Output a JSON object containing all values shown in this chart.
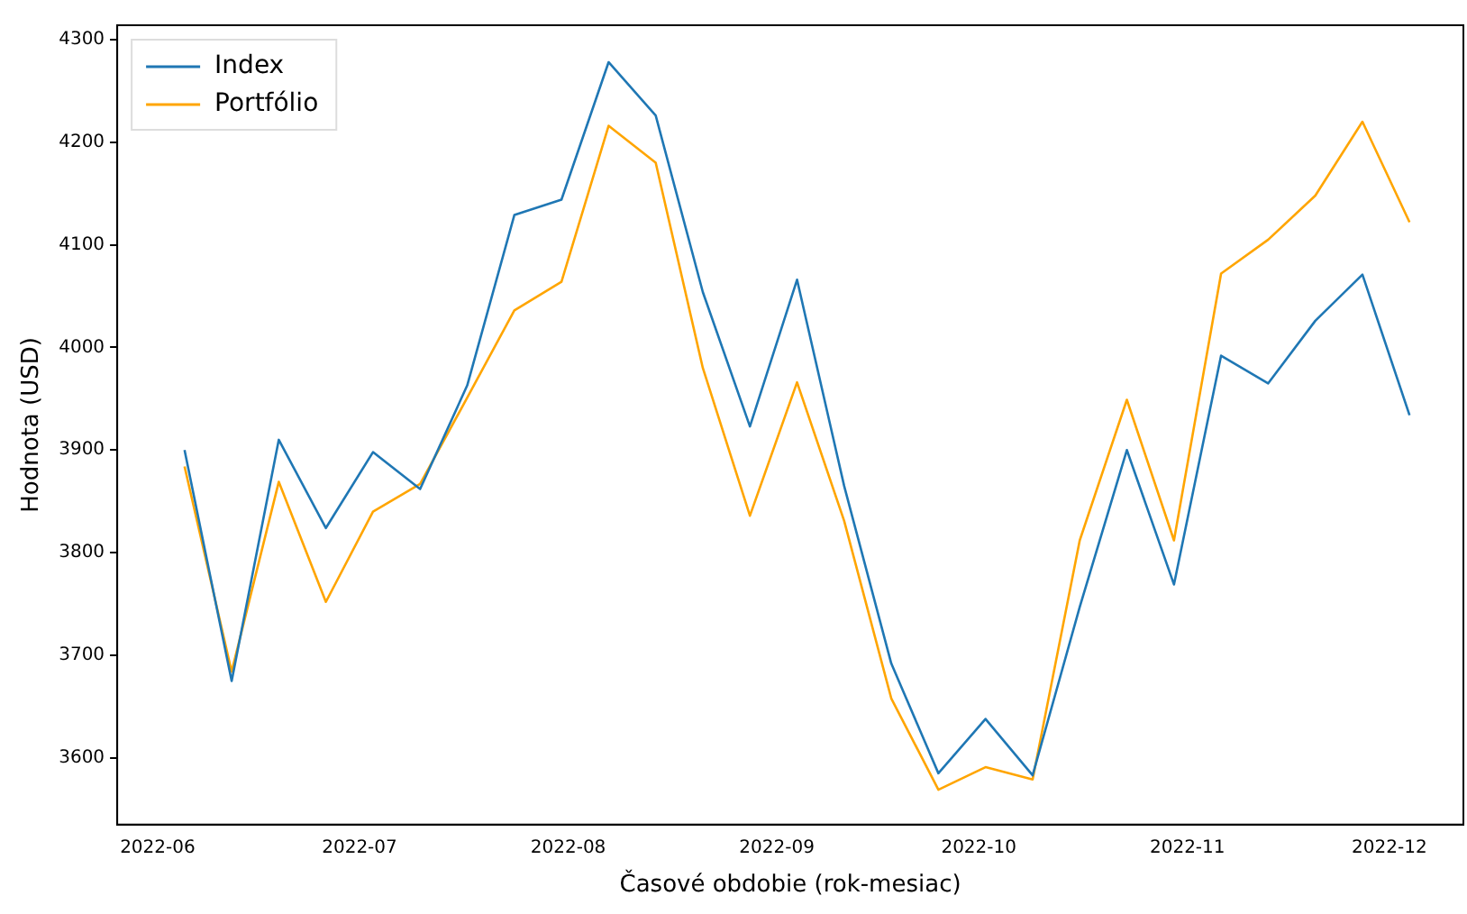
{
  "chart_data": {
    "type": "line",
    "xlabel": "Časové obdobie (rok-mesiac)",
    "ylabel": "Hodnota (USD)",
    "x": [
      "2022-06-05",
      "2022-06-12",
      "2022-06-19",
      "2022-06-26",
      "2022-07-03",
      "2022-07-10",
      "2022-07-17",
      "2022-07-24",
      "2022-07-31",
      "2022-08-07",
      "2022-08-14",
      "2022-08-21",
      "2022-08-28",
      "2022-09-04",
      "2022-09-11",
      "2022-09-18",
      "2022-09-25",
      "2022-10-02",
      "2022-10-09",
      "2022-10-16",
      "2022-10-23",
      "2022-10-30",
      "2022-11-06",
      "2022-11-13",
      "2022-11-20",
      "2022-11-27",
      "2022-12-04"
    ],
    "series": [
      {
        "name": "Index",
        "color": "#1f77b4",
        "values": [
          3900,
          3675,
          3910,
          3824,
          3898,
          3862,
          3963,
          4129,
          4144,
          4278,
          4226,
          4054,
          3923,
          4066,
          3865,
          3692,
          3585,
          3638,
          3583,
          3747,
          3900,
          3769,
          3992,
          3965,
          4026,
          4071,
          3934
        ]
      },
      {
        "name": "Portfólio",
        "color": "#ffa500",
        "values": [
          3884,
          3684,
          3869,
          3752,
          3840,
          3867,
          3951,
          4036,
          4064,
          4216,
          4180,
          3980,
          3836,
          3966,
          3831,
          3658,
          3569,
          3591,
          3579,
          3812,
          3949,
          3812,
          4072,
          4105,
          4148,
          4220,
          4122
        ]
      }
    ],
    "xlim": [
      "2022-05-26",
      "2022-12-12"
    ],
    "xticks": [
      "2022-06",
      "2022-07",
      "2022-08",
      "2022-09",
      "2022-10",
      "2022-11",
      "2022-12"
    ],
    "ylim": [
      3535,
      4314
    ],
    "yticks": [
      3600,
      3700,
      3800,
      3900,
      4000,
      4100,
      4200,
      4300
    ],
    "grid": false,
    "legend": "top left",
    "marker": "none",
    "line_style": "solid"
  }
}
